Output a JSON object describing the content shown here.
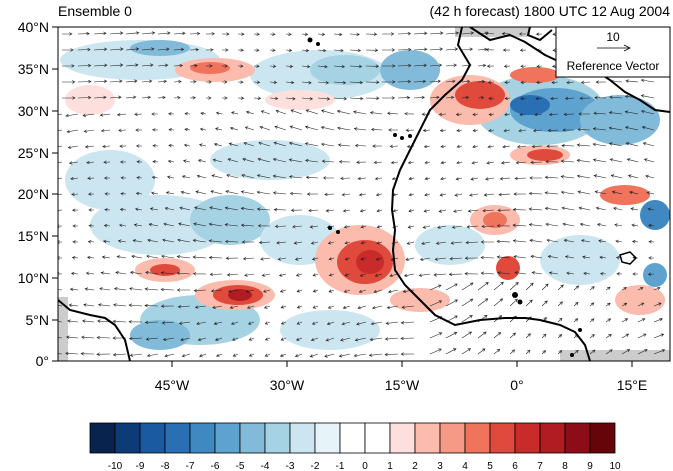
{
  "header": {
    "left_title": "Ensemble 0",
    "right_title": "(42 h forecast) 1800 UTC 12 Aug 2004"
  },
  "reference_vector": {
    "magnitude_label": "10",
    "label": "Reference Vector"
  },
  "axes": {
    "lat_ticks": [
      "40°N",
      "35°N",
      "30°N",
      "25°N",
      "20°N",
      "15°N",
      "10°N",
      "5°N",
      "0°"
    ],
    "lon_ticks": [
      "45°W",
      "30°W",
      "15°W",
      "0°",
      "15°E"
    ],
    "lat_range": [
      0,
      40
    ],
    "lon_range": [
      -60,
      20
    ]
  },
  "colorbar": {
    "labels": [
      "-10",
      "-9",
      "-8",
      "-7",
      "-6",
      "-5",
      "-4",
      "-3",
      "-2",
      "-1",
      "0",
      "1",
      "2",
      "3",
      "4",
      "5",
      "6",
      "7",
      "8",
      "9",
      "10"
    ],
    "colors": [
      "#08244e",
      "#0c3b78",
      "#1a5aa0",
      "#2a6fb3",
      "#3f88c2",
      "#5ea3cf",
      "#82bbd9",
      "#a6d3e3",
      "#cbe6f0",
      "#e6f4fa",
      "#ffffff",
      "#ffffff",
      "#fde0dd",
      "#fbbcae",
      "#f79a85",
      "#f0735c",
      "#e04a3c",
      "#c92a2a",
      "#b01c22",
      "#8c0d17",
      "#660509"
    ]
  },
  "map": {
    "ocean_color": "#ffffff",
    "missing_color": "#cccccc",
    "coast_color": "#000000"
  }
}
